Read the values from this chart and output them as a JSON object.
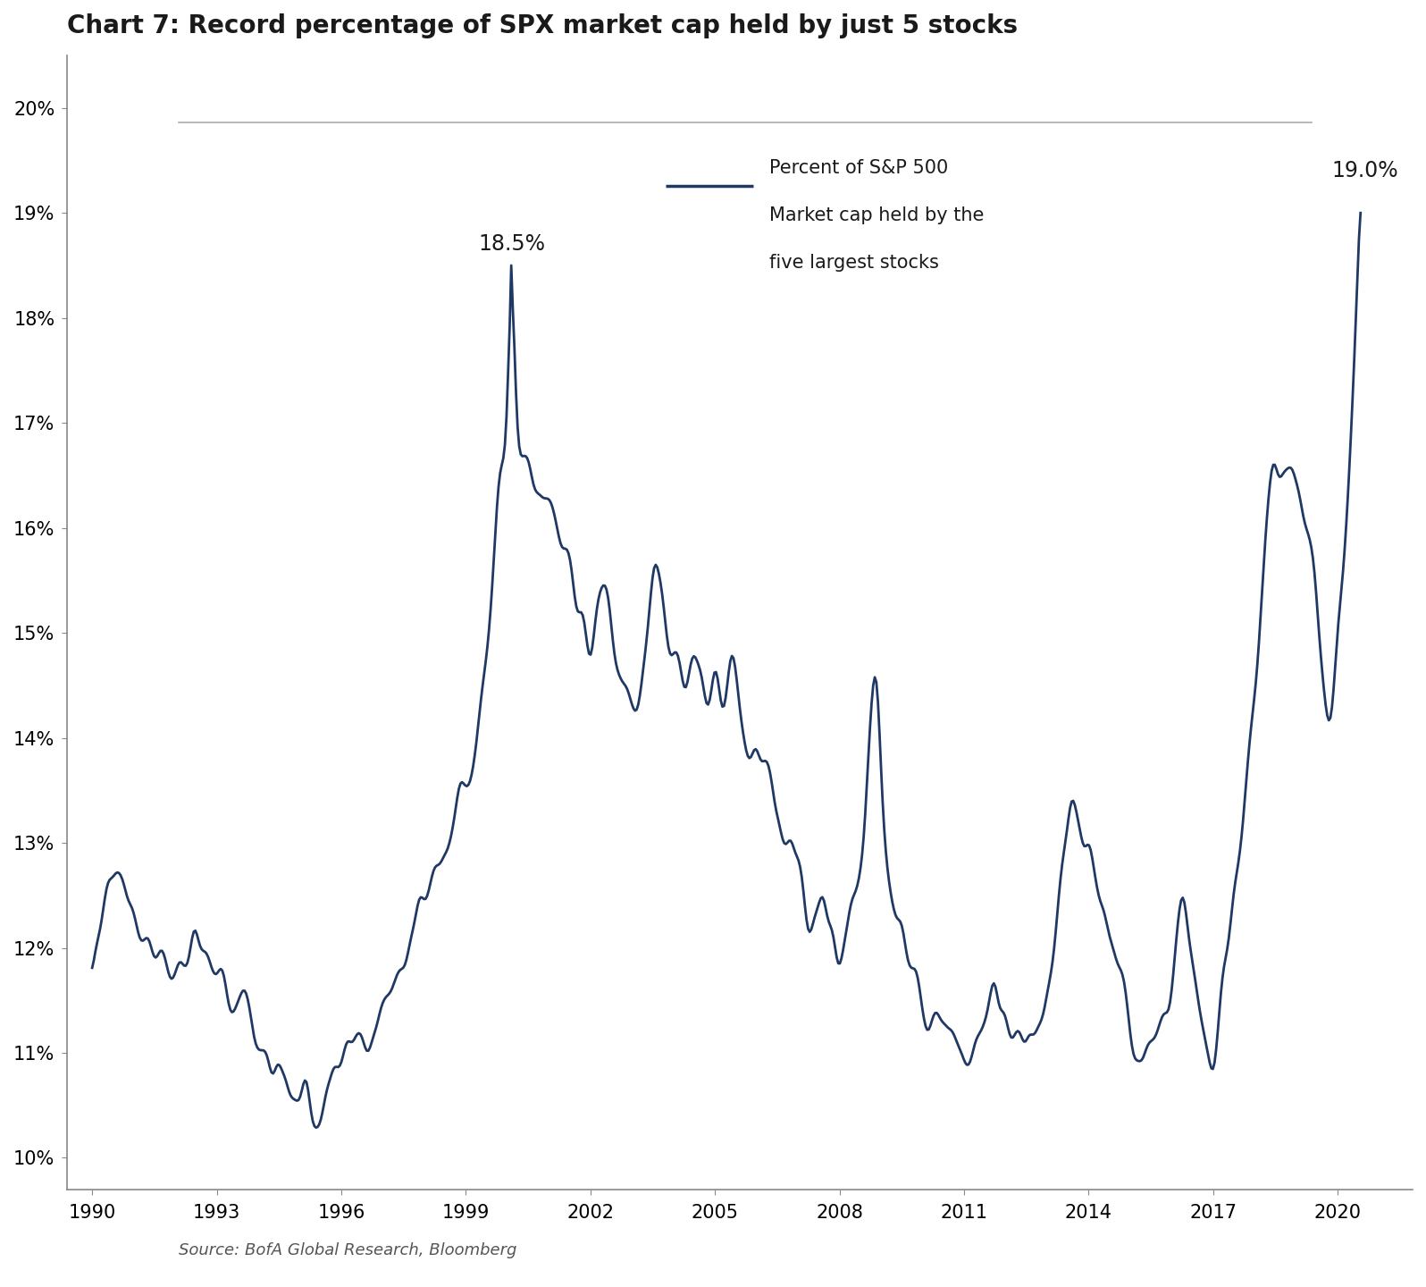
{
  "title": "Chart 7: Record percentage of SPX market cap held by just 5 stocks",
  "source_text": "Source: BofA Global Research, Bloomberg",
  "legend_line1": "Percent of S&P 500",
  "legend_line2": "Market cap held by the",
  "legend_line3": "five largest stocks",
  "annotation_peak2000_label": "18.5%",
  "annotation_peak2020_label": "19.0%",
  "line_color": "#1f3864",
  "background_color": "#ffffff",
  "title_color": "#1a1a1a",
  "source_color": "#555555",
  "ylim_min": 0.1,
  "ylim_max": 0.205,
  "yticks": [
    0.1,
    0.11,
    0.12,
    0.13,
    0.14,
    0.15,
    0.16,
    0.17,
    0.18,
    0.19,
    0.2
  ],
  "xtick_years": [
    1990,
    1993,
    1996,
    1999,
    2002,
    2005,
    2008,
    2011,
    2014,
    2017,
    2020
  ],
  "title_fontsize": 20,
  "axis_fontsize": 15,
  "annotation_fontsize": 17,
  "source_fontsize": 13,
  "line_width": 2.0
}
